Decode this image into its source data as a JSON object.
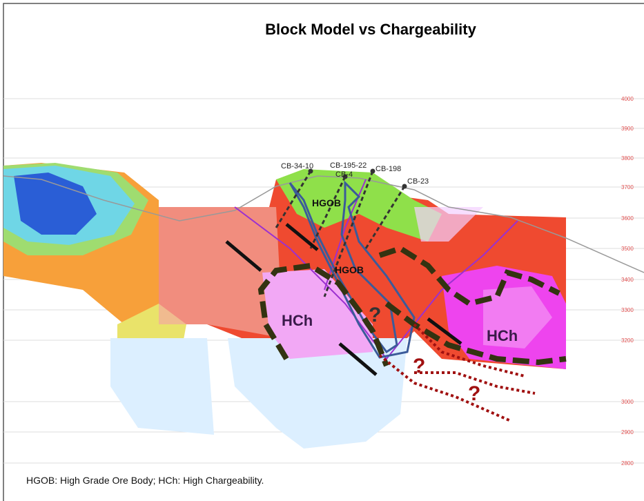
{
  "title": "Block Model  vs  Chargeability",
  "elevations": [
    "4000",
    "3900",
    "3800",
    "3700",
    "3600",
    "3500",
    "3400",
    "3300",
    "3200",
    "3000",
    "2900",
    "2800"
  ],
  "drillholes": [
    "CB-34-10",
    "CB-195-22",
    "CB-4",
    "CB-198",
    "CB-23"
  ],
  "annotations": {
    "hgob_upper": "HGOB",
    "hgob_lower": "HGOB",
    "hch_left": "HCh",
    "hch_right": "HCh",
    "q1": "?",
    "q2": "?",
    "q3": "?"
  },
  "caption": "HGOB: High Grade Ore Body;    HCh: High Chargeability."
}
